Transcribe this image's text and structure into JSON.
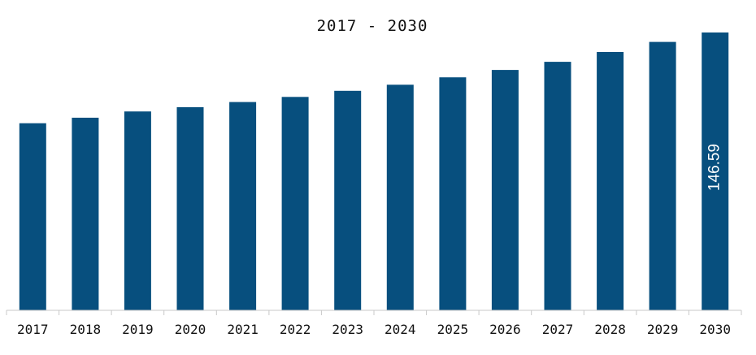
{
  "chart_data": {
    "type": "bar",
    "title": "2017 - 2030",
    "xlabel": "",
    "ylabel": "",
    "categories": [
      "2017",
      "2018",
      "2019",
      "2020",
      "2021",
      "2022",
      "2023",
      "2024",
      "2025",
      "2026",
      "2027",
      "2028",
      "2029",
      "2030"
    ],
    "values": [
      98.7,
      101.6,
      104.9,
      107.2,
      109.9,
      112.6,
      115.8,
      119.0,
      122.9,
      126.8,
      131.1,
      136.3,
      141.6,
      146.59
    ],
    "data_labels": [
      {
        "category": "2030",
        "text": "146.59"
      }
    ],
    "ylim": [
      0,
      150
    ],
    "grid": false,
    "legend": "none",
    "colors": {
      "bar": "#074f7e",
      "axis": "#c8c8c8",
      "text": "#111111",
      "label": "#ffffff"
    }
  }
}
